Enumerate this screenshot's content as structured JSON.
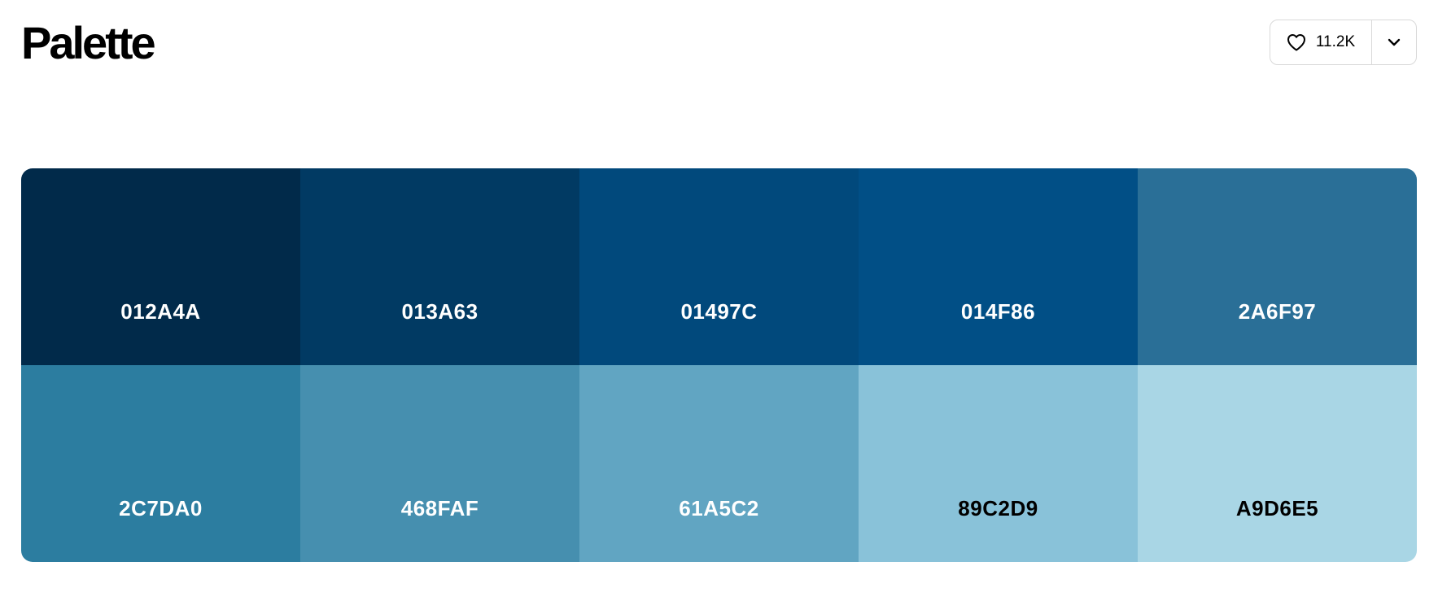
{
  "header": {
    "title": "Palette",
    "like_count": "11.2K",
    "like_icon": "heart-icon",
    "more_icon": "chevron-down-icon"
  },
  "palette": {
    "swatches": [
      {
        "hex": "012A4A",
        "color": "#012A4A",
        "text_color": "#FFFFFF"
      },
      {
        "hex": "013A63",
        "color": "#013A63",
        "text_color": "#FFFFFF"
      },
      {
        "hex": "01497C",
        "color": "#01497C",
        "text_color": "#FFFFFF"
      },
      {
        "hex": "014F86",
        "color": "#014F86",
        "text_color": "#FFFFFF"
      },
      {
        "hex": "2A6F97",
        "color": "#2A6F97",
        "text_color": "#FFFFFF"
      },
      {
        "hex": "2C7DA0",
        "color": "#2C7DA0",
        "text_color": "#FFFFFF"
      },
      {
        "hex": "468FAF",
        "color": "#468FAF",
        "text_color": "#FFFFFF"
      },
      {
        "hex": "61A5C2",
        "color": "#61A5C2",
        "text_color": "#FFFFFF"
      },
      {
        "hex": "89C2D9",
        "color": "#89C2D9",
        "text_color": "#000000"
      },
      {
        "hex": "A9D6E5",
        "color": "#A9D6E5",
        "text_color": "#000000"
      }
    ]
  }
}
